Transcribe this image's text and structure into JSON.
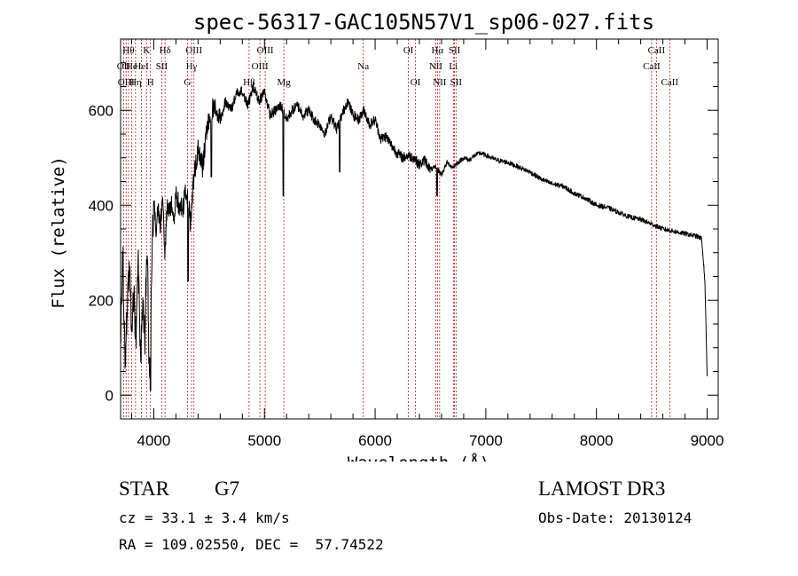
{
  "chart_data": {
    "type": "line",
    "title": "spec-56317-GAC105N57V1_sp06-027.fits",
    "xlabel": "Wavelength (Å)",
    "ylabel": "Flux (relative)",
    "xlim": [
      3700,
      9100
    ],
    "ylim": [
      -50,
      750
    ],
    "xticks": [
      4000,
      5000,
      6000,
      7000,
      8000,
      9000
    ],
    "yticks": [
      0,
      200,
      400,
      600
    ],
    "series": [
      {
        "name": "flux",
        "x": [
          3700,
          3720,
          3740,
          3760,
          3780,
          3800,
          3820,
          3840,
          3860,
          3880,
          3900,
          3920,
          3940,
          3960,
          3980,
          4000,
          4020,
          4040,
          4060,
          4080,
          4100,
          4120,
          4140,
          4160,
          4180,
          4200,
          4230,
          4260,
          4290,
          4310,
          4330,
          4360,
          4400,
          4440,
          4480,
          4520,
          4560,
          4600,
          4650,
          4700,
          4750,
          4800,
          4850,
          4900,
          4950,
          5000,
          5050,
          5100,
          5150,
          5200,
          5250,
          5300,
          5350,
          5400,
          5450,
          5500,
          5550,
          5600,
          5650,
          5700,
          5750,
          5800,
          5850,
          5900,
          5950,
          6000,
          6050,
          6100,
          6150,
          6200,
          6250,
          6300,
          6350,
          6400,
          6450,
          6500,
          6550,
          6600,
          6650,
          6700,
          6750,
          6800,
          6850,
          6900,
          6950,
          7000,
          7100,
          7200,
          7300,
          7400,
          7500,
          7600,
          7700,
          7800,
          7900,
          8000,
          8100,
          8200,
          8300,
          8400,
          8500,
          8600,
          8700,
          8800,
          8900,
          8950,
          8980,
          9000
        ],
        "y": [
          120,
          300,
          60,
          200,
          260,
          150,
          220,
          120,
          280,
          80,
          210,
          130,
          330,
          20,
          250,
          420,
          350,
          390,
          360,
          410,
          300,
          400,
          380,
          410,
          360,
          420,
          400,
          390,
          430,
          420,
          360,
          450,
          520,
          480,
          560,
          600,
          610,
          580,
          620,
          600,
          640,
          640,
          610,
          650,
          620,
          640,
          590,
          600,
          610,
          580,
          600,
          610,
          590,
          600,
          580,
          570,
          550,
          590,
          560,
          590,
          620,
          590,
          580,
          600,
          570,
          580,
          540,
          545,
          525,
          510,
          500,
          505,
          500,
          485,
          495,
          475,
          480,
          465,
          490,
          480,
          490,
          500,
          495,
          505,
          510,
          505,
          495,
          490,
          480,
          470,
          455,
          445,
          440,
          425,
          415,
          400,
          395,
          385,
          375,
          370,
          360,
          350,
          345,
          340,
          335,
          330,
          240,
          40
        ],
        "dips": [
          {
            "x": 3970,
            "y": 10
          },
          {
            "x": 4310,
            "y": 240
          },
          {
            "x": 4520,
            "y": 460
          },
          {
            "x": 5170,
            "y": 420
          },
          {
            "x": 5680,
            "y": 470
          },
          {
            "x": 6560,
            "y": 420
          }
        ]
      }
    ],
    "lines": [
      {
        "wl": 3727,
        "label": "OII",
        "row": 1
      },
      {
        "wl": 3750,
        "label": "OIII",
        "row": 2
      },
      {
        "wl": 3771,
        "label": "Hθ",
        "row": 0
      },
      {
        "wl": 3799,
        "label": "He",
        "row": 1
      },
      {
        "wl": 3835,
        "label": "Hη",
        "row": 2
      },
      {
        "wl": 3889,
        "label": "HeI",
        "row": 1
      },
      {
        "wl": 3934,
        "label": "K",
        "row": 0
      },
      {
        "wl": 3970,
        "label": "H",
        "row": 2
      },
      {
        "wl": 4072,
        "label": "SII",
        "row": 1
      },
      {
        "wl": 4102,
        "label": "Hδ",
        "row": 0
      },
      {
        "wl": 4304,
        "label": "G",
        "row": 2
      },
      {
        "wl": 4341,
        "label": "Hγ",
        "row": 1
      },
      {
        "wl": 4363,
        "label": "OIII",
        "row": 0
      },
      {
        "wl": 4861,
        "label": "Hβ",
        "row": 2
      },
      {
        "wl": 4959,
        "label": "OIII",
        "row": 1
      },
      {
        "wl": 5007,
        "label": "OIII",
        "row": 0
      },
      {
        "wl": 5175,
        "label": "Mg",
        "row": 2
      },
      {
        "wl": 5893,
        "label": "Na",
        "row": 1
      },
      {
        "wl": 6300,
        "label": "OI",
        "row": 0
      },
      {
        "wl": 6364,
        "label": "OI",
        "row": 2
      },
      {
        "wl": 6548,
        "label": "NII",
        "row": 1
      },
      {
        "wl": 6563,
        "label": "Hα",
        "row": 0
      },
      {
        "wl": 6583,
        "label": "NII",
        "row": 2
      },
      {
        "wl": 6707,
        "label": "Li",
        "row": 1
      },
      {
        "wl": 6717,
        "label": "SII",
        "row": 0
      },
      {
        "wl": 6731,
        "label": "SII",
        "row": 2
      },
      {
        "wl": 8498,
        "label": "CaII",
        "row": 1
      },
      {
        "wl": 8542,
        "label": "CaII",
        "row": 0
      },
      {
        "wl": 8662,
        "label": "CaII",
        "row": 2
      }
    ]
  },
  "info": {
    "class_label": "STAR",
    "subclass": "G7",
    "survey": "LAMOST DR3",
    "redshift_text": "cz = 33.1 ± 3.4 km/s",
    "obs_date_text": "Obs-Date: 20130124",
    "coords_text": "RA = 109.02550, DEC =  57.74522"
  },
  "colors": {
    "spectrum": "#000000",
    "line_marker": "#b22222",
    "axis": "#000000"
  }
}
